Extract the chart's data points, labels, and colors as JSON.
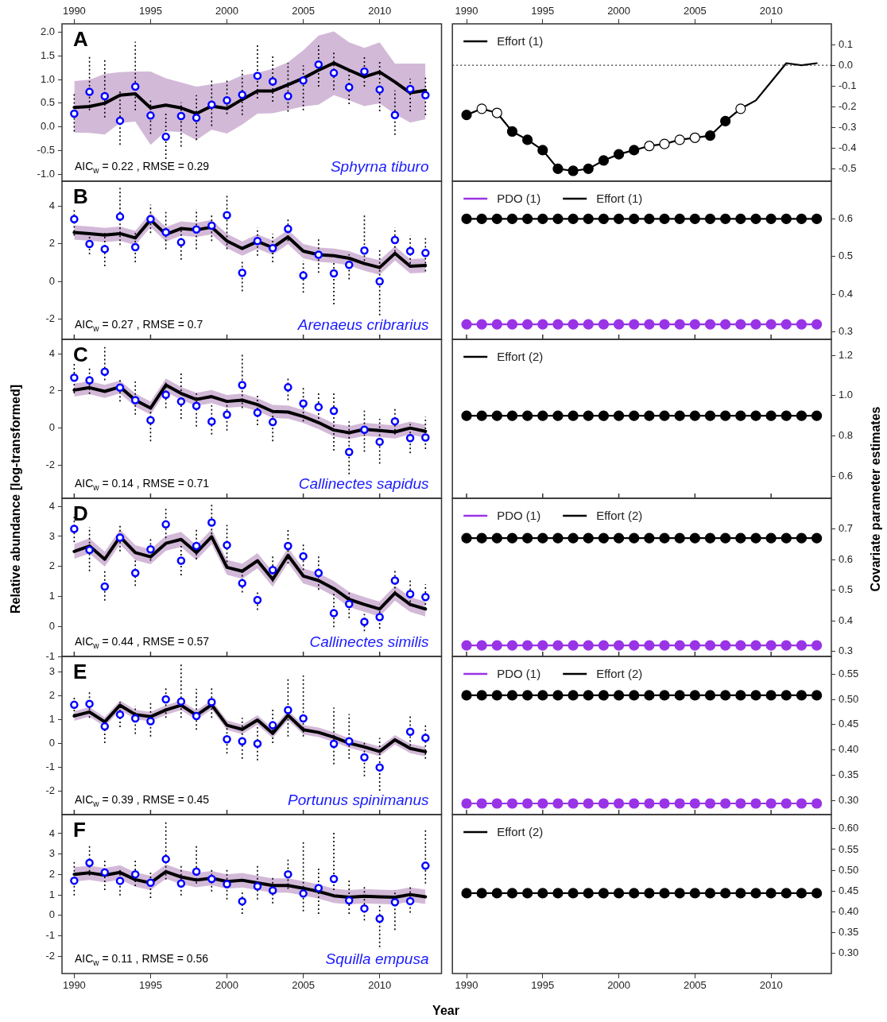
{
  "chart_data": [
    {
      "type": "line",
      "title": "A",
      "subtitle": "Sphyrna tiburo",
      "annotations": [
        "AIC$_{w}$ = 0.22 , RMSE = 0.29"
      ],
      "x": [
        1990,
        1991,
        1992,
        1993,
        1994,
        1995,
        1996,
        1997,
        1998,
        1999,
        2000,
        2001,
        2002,
        2003,
        2004,
        2005,
        2006,
        2007,
        2008,
        2009,
        2010,
        2011,
        2012,
        2013
      ],
      "xlim": [
        1989.2,
        2014.05
      ],
      "xticks": [
        1990,
        1995,
        2000,
        2005,
        2010
      ],
      "ylim": [
        -1.15,
        2.18
      ],
      "yticks": [
        {
          "value": -1,
          "label": "-1.0"
        },
        -0.5,
        {
          "value": 0,
          "label": "0.0"
        },
        0.5,
        {
          "value": 1,
          "label": "1.0"
        },
        1.5,
        {
          "value": 2,
          "label": "2.0"
        }
      ],
      "series": [
        {
          "type": "line",
          "color": "#000000",
          "marker": "none",
          "values": [
            0.41,
            0.43,
            0.5,
            0.67,
            0.7,
            0.4,
            0.46,
            0.4,
            0.28,
            0.44,
            0.39,
            0.58,
            0.76,
            0.76,
            0.89,
            1.03,
            1.2,
            1.35,
            1.2,
            1.06,
            1.16,
            0.95,
            0.72,
            0.77
          ],
          "upper": [
            0.97,
            1.0,
            1.12,
            1.16,
            1.17,
            1.17,
            1.03,
            0.94,
            0.85,
            0.9,
            0.95,
            1.09,
            1.14,
            1.23,
            1.37,
            1.62,
            1.93,
            2.02,
            1.79,
            1.67,
            1.79,
            1.34,
            1.34,
            1.34
          ],
          "lower": [
            -0.12,
            -0.13,
            -0.16,
            0.08,
            0.11,
            -0.38,
            -0.09,
            -0.11,
            -0.28,
            -0.06,
            -0.14,
            0.05,
            0.28,
            0.29,
            0.36,
            0.43,
            0.47,
            0.67,
            0.56,
            0.44,
            0.5,
            0.27,
            0.09,
            0.16
          ]
        },
        {
          "type": "scatter",
          "color": "#0000ff",
          "marker": "circle",
          "values": [
            0.28,
            0.74,
            0.65,
            0.13,
            0.85,
            0.24,
            -0.21,
            0.23,
            0.19,
            0.47,
            0.56,
            0.68,
            1.08,
            0.96,
            0.65,
            0.98,
            1.32,
            1.14,
            0.84,
            1.17,
            0.79,
            0.25,
            0.8,
            0.67
          ],
          "errors": [
            [
              -0.1,
              0.7
            ],
            [
              0.35,
              1.5
            ],
            [
              0.2,
              1.45
            ],
            [
              -0.38,
              0.75
            ],
            [
              0.35,
              1.8
            ],
            [
              -0.15,
              0.6
            ],
            [
              -0.68,
              0.28
            ],
            [
              -0.42,
              0.52
            ],
            [
              -0.28,
              0.67
            ],
            [
              0.02,
              0.98
            ],
            [
              0.27,
              1.02
            ],
            [
              0.25,
              1.2
            ],
            [
              0.6,
              1.77
            ],
            [
              0.53,
              1.5
            ],
            [
              0.32,
              1.35
            ],
            [
              0.35,
              1.3
            ],
            [
              0.85,
              1.72
            ],
            [
              0.78,
              1.57
            ],
            [
              0.48,
              1.2
            ],
            [
              0.85,
              1.52
            ],
            [
              0.33,
              1.42
            ],
            [
              -0.17,
              0.77
            ],
            [
              0.33,
              1.02
            ],
            [
              0.25,
              1.05
            ]
          ]
        }
      ]
    },
    {
      "type": "line",
      "legend": "top left",
      "x": [
        1990,
        1991,
        1992,
        1993,
        1994,
        1995,
        1996,
        1997,
        1998,
        1999,
        2000,
        2001,
        2002,
        2003,
        2004,
        2005,
        2006,
        2007,
        2008,
        2009,
        2010,
        2011,
        2012,
        2013
      ],
      "xlim": [
        1989.07,
        2013.96
      ],
      "xticks": [
        1990,
        1995,
        2000,
        2005,
        2010
      ],
      "ylim": [
        -0.56,
        0.2
      ],
      "yticks": [
        -0.5,
        -0.4,
        -0.3,
        -0.2,
        -0.1,
        {
          "value": 0,
          "label": "0.0"
        },
        0.1
      ],
      "ref_lines": [
        {
          "axis": "y",
          "value": 0,
          "line_style": "dotted"
        }
      ],
      "series": [
        {
          "name": "Effort (1)",
          "type": "line",
          "color": "#000000",
          "marker": "circle",
          "values": [
            -0.24,
            -0.21,
            -0.23,
            -0.32,
            -0.36,
            -0.41,
            -0.5,
            -0.51,
            -0.5,
            -0.46,
            -0.43,
            -0.41,
            -0.39,
            -0.38,
            -0.36,
            -0.35,
            -0.34,
            -0.27,
            -0.21,
            -0.17,
            -0.08,
            0.01,
            0.0,
            0.01
          ],
          "colors": [
            "#000000",
            "#ffffff",
            "#ffffff",
            "#000000",
            "#000000",
            "#000000",
            "#000000",
            "#000000",
            "#000000",
            "#000000",
            "#000000",
            "#000000",
            "#ffffff",
            "#ffffff",
            "#ffffff",
            "#ffffff",
            "#000000",
            "#000000",
            "#ffffff",
            null,
            null,
            null,
            null,
            null
          ]
        }
      ]
    },
    {
      "type": "line",
      "title": "B",
      "subtitle": "Arenaeus cribrarius",
      "annotations": [
        "AIC$_{w}$ = 0.27 , RMSE = 0.7"
      ],
      "x": [
        1990,
        1991,
        1992,
        1993,
        1994,
        1995,
        1996,
        1997,
        1998,
        1999,
        2000,
        2001,
        2002,
        2003,
        2004,
        2005,
        2006,
        2007,
        2008,
        2009,
        2010,
        2011,
        2012,
        2013
      ],
      "xlim": [
        1989.2,
        2014.05
      ],
      "xticks": [
        1990,
        1995,
        2000,
        2005,
        2010
      ],
      "tick_labels": "y",
      "ylim": [
        -3.07,
        5.32
      ],
      "yticks": [
        -2,
        0,
        2,
        4
      ],
      "series": [
        {
          "type": "line",
          "color": "#000000",
          "marker": "none",
          "values": [
            2.6,
            2.54,
            2.46,
            2.54,
            2.31,
            3.27,
            2.5,
            2.81,
            2.74,
            2.88,
            2.15,
            1.75,
            2.12,
            1.8,
            2.36,
            1.61,
            1.42,
            1.37,
            1.23,
            0.95,
            0.74,
            1.49,
            0.81,
            0.85
          ],
          "upper": [
            2.98,
            2.92,
            2.84,
            2.92,
            2.69,
            3.65,
            2.88,
            3.19,
            3.12,
            3.26,
            2.53,
            2.13,
            2.5,
            2.18,
            2.74,
            1.99,
            1.8,
            1.75,
            1.61,
            1.33,
            1.12,
            1.87,
            1.19,
            1.23
          ],
          "lower": [
            2.22,
            2.16,
            2.08,
            2.16,
            1.93,
            2.89,
            2.12,
            2.43,
            2.36,
            2.5,
            1.77,
            1.37,
            1.74,
            1.42,
            1.98,
            1.23,
            1.04,
            0.99,
            0.85,
            0.57,
            0.36,
            1.11,
            0.43,
            0.47
          ]
        },
        {
          "type": "scatter",
          "color": "#0000ff",
          "marker": "circle",
          "values": [
            3.31,
            1.99,
            1.72,
            3.44,
            1.82,
            3.31,
            2.61,
            2.08,
            2.76,
            2.96,
            3.52,
            0.46,
            2.15,
            1.77,
            2.79,
            0.32,
            1.42,
            0.43,
            0.88,
            1.64,
            0.01,
            2.2,
            1.61,
            1.51
          ],
          "errors": [
            [
              2.43,
              3.9
            ],
            [
              1.44,
              2.6
            ],
            [
              0.81,
              2.57
            ],
            [
              1.94,
              4.96
            ],
            [
              1.02,
              2.57
            ],
            [
              2.57,
              4.08
            ],
            [
              1.72,
              3.69
            ],
            [
              1.16,
              2.85
            ],
            [
              1.72,
              3.83
            ],
            [
              2.15,
              3.62
            ],
            [
              1.72,
              4.6
            ],
            [
              -0.52,
              1.16
            ],
            [
              1.37,
              2.85
            ],
            [
              1.02,
              2.53
            ],
            [
              2.15,
              3.34
            ],
            [
              -0.59,
              1.1
            ],
            [
              0.46,
              2.36
            ],
            [
              -1.22,
              1.1
            ],
            [
              0.11,
              1.44
            ],
            [
              0.88,
              3.62
            ],
            [
              -1.79,
              1.72
            ],
            [
              1.58,
              2.85
            ],
            [
              0.74,
              2.43
            ],
            [
              0.53,
              2.29
            ]
          ]
        }
      ]
    },
    {
      "type": "line",
      "legend": "top left",
      "x": [
        1990,
        1991,
        1992,
        1993,
        1994,
        1995,
        1996,
        1997,
        1998,
        1999,
        2000,
        2001,
        2002,
        2003,
        2004,
        2005,
        2006,
        2007,
        2008,
        2009,
        2010,
        2011,
        2012,
        2013
      ],
      "xlim": [
        1989.07,
        2013.96
      ],
      "xticks": [
        1990,
        1995,
        2000,
        2005,
        2010
      ],
      "tick_labels": "y",
      "ylim": [
        0.28,
        0.7
      ],
      "yticks": [
        0.3,
        0.4,
        0.5,
        0.6
      ],
      "series": [
        {
          "name": "PDO (1)",
          "type": "line",
          "color": "#9933e6",
          "marker": "circle",
          "values": [
            0.32,
            0.32,
            0.32,
            0.32,
            0.32,
            0.32,
            0.32,
            0.32,
            0.32,
            0.32,
            0.32,
            0.32,
            0.32,
            0.32,
            0.32,
            0.32,
            0.32,
            0.32,
            0.32,
            0.32,
            0.32,
            0.32,
            0.32,
            0.32
          ]
        },
        {
          "name": "Effort (1)",
          "type": "line",
          "color": "#000000",
          "marker": "circle",
          "values": [
            0.6,
            0.6,
            0.6,
            0.6,
            0.6,
            0.6,
            0.6,
            0.6,
            0.6,
            0.6,
            0.6,
            0.6,
            0.6,
            0.6,
            0.6,
            0.6,
            0.6,
            0.6,
            0.6,
            0.6,
            0.6,
            0.6,
            0.6,
            0.6
          ]
        }
      ]
    },
    {
      "type": "line",
      "title": "C",
      "subtitle": "Callinectes sapidus",
      "annotations": [
        "AIC$_{w}$ = 0.14 , RMSE = 0.71"
      ],
      "x": [
        1990,
        1991,
        1992,
        1993,
        1994,
        1995,
        1996,
        1997,
        1998,
        1999,
        2000,
        2001,
        2002,
        2003,
        2004,
        2005,
        2006,
        2007,
        2008,
        2009,
        2010,
        2011,
        2012,
        2013
      ],
      "xlim": [
        1989.2,
        2014.05
      ],
      "xticks": [
        1990,
        1995,
        2000,
        2005,
        2010
      ],
      "tick_labels": "y",
      "ylim": [
        -3.78,
        4.77
      ],
      "yticks": [
        -2,
        0,
        2,
        4
      ],
      "series": [
        {
          "type": "line",
          "color": "#000000",
          "marker": "none",
          "values": [
            2.04,
            2.17,
            1.97,
            2.21,
            1.5,
            1.07,
            2.31,
            1.86,
            1.54,
            1.69,
            1.43,
            1.5,
            1.26,
            0.89,
            0.86,
            0.62,
            0.29,
            -0.11,
            -0.25,
            -0.07,
            -0.14,
            -0.21,
            0.0,
            -0.18
          ],
          "upper": [
            2.39,
            2.52,
            2.32,
            2.56,
            1.85,
            1.42,
            2.66,
            2.21,
            1.89,
            2.04,
            1.78,
            1.85,
            1.61,
            1.24,
            1.21,
            0.97,
            0.64,
            0.24,
            0.1,
            0.28,
            0.21,
            0.14,
            0.35,
            0.17
          ],
          "lower": [
            1.69,
            1.82,
            1.62,
            1.86,
            1.15,
            0.72,
            1.96,
            1.51,
            1.19,
            1.34,
            1.08,
            1.15,
            0.91,
            0.54,
            0.51,
            0.27,
            -0.06,
            -0.46,
            -0.6,
            -0.42,
            -0.49,
            -0.56,
            -0.35,
            -0.53
          ]
        },
        {
          "type": "scatter",
          "color": "#0000ff",
          "marker": "circle",
          "values": [
            2.71,
            2.57,
            3.03,
            2.17,
            1.5,
            0.42,
            1.79,
            1.43,
            1.19,
            0.35,
            0.72,
            2.31,
            0.83,
            0.32,
            2.19,
            1.32,
            1.13,
            0.92,
            -1.29,
            -0.09,
            -0.74,
            0.36,
            -0.54,
            -0.51
          ],
          "errors": [
            [
              1.86,
              3.57
            ],
            [
              1.83,
              3.31
            ],
            [
              2.57,
              4.35
            ],
            [
              1.43,
              2.71
            ],
            [
              0.72,
              2.5
            ],
            [
              -0.71,
              1.22
            ],
            [
              1.07,
              2.57
            ],
            [
              0.5,
              2.93
            ],
            [
              0.08,
              1.86
            ],
            [
              -0.35,
              1.22
            ],
            [
              -0.14,
              1.57
            ],
            [
              1.07,
              3.99
            ],
            [
              0.15,
              1.86
            ],
            [
              -0.71,
              0.79
            ],
            [
              1.5,
              2.78
            ],
            [
              0.36,
              2.28
            ],
            [
              0.5,
              1.93
            ],
            [
              -1.21,
              1.93
            ],
            [
              -2.49,
              0.36
            ],
            [
              -1.28,
              0.93
            ],
            [
              -1.92,
              0.5
            ],
            [
              -0.35,
              1.03
            ],
            [
              -1.35,
              0.22
            ],
            [
              -1.13,
              0.6
            ]
          ]
        }
      ]
    },
    {
      "type": "line",
      "legend": "top left",
      "x": [
        1990,
        1991,
        1992,
        1993,
        1994,
        1995,
        1996,
        1997,
        1998,
        1999,
        2000,
        2001,
        2002,
        2003,
        2004,
        2005,
        2006,
        2007,
        2008,
        2009,
        2010,
        2011,
        2012,
        2013
      ],
      "xlim": [
        1989.07,
        2013.96
      ],
      "xticks": [
        1990,
        1995,
        2000,
        2005,
        2010
      ],
      "tick_labels": "y",
      "ylim": [
        0.49,
        1.28
      ],
      "yticks": [
        0.6,
        0.8,
        {
          "value": 1,
          "label": "1.0"
        },
        1.2
      ],
      "series": [
        {
          "name": "Effort (2)",
          "type": "line",
          "color": "#000000",
          "marker": "circle",
          "values": [
            0.9,
            0.9,
            0.9,
            0.9,
            0.9,
            0.9,
            0.9,
            0.9,
            0.9,
            0.9,
            0.9,
            0.9,
            0.9,
            0.9,
            0.9,
            0.9,
            0.9,
            0.9,
            0.9,
            0.9,
            0.9,
            0.9,
            0.9,
            0.9
          ]
        }
      ]
    },
    {
      "type": "line",
      "title": "D",
      "subtitle": "Callinectes similis",
      "annotations": [
        "AIC$_{w}$ = 0.44 , RMSE = 0.57"
      ],
      "ylabel": "Relative abundance [log-transformed]",
      "x": [
        1990,
        1991,
        1992,
        1993,
        1994,
        1995,
        1996,
        1997,
        1998,
        1999,
        2000,
        2001,
        2002,
        2003,
        2004,
        2005,
        2006,
        2007,
        2008,
        2009,
        2010,
        2011,
        2012,
        2013
      ],
      "xlim": [
        1989.2,
        2014.05
      ],
      "xticks": [
        1990,
        1995,
        2000,
        2005,
        2010
      ],
      "tick_labels": "y",
      "ylim": [
        -1,
        4.27
      ],
      "yticks": [
        -1,
        0,
        1,
        2,
        3,
        4
      ],
      "series": [
        {
          "type": "line",
          "color": "#000000",
          "marker": "none",
          "values": [
            2.5,
            2.68,
            2.24,
            2.99,
            2.46,
            2.32,
            2.77,
            2.9,
            2.46,
            2.99,
            1.97,
            1.84,
            2.19,
            1.57,
            2.37,
            1.68,
            1.53,
            1.26,
            0.9,
            0.73,
            0.58,
            1.11,
            0.73,
            0.58
          ],
          "upper": [
            2.75,
            2.93,
            2.49,
            3.24,
            2.71,
            2.57,
            3.02,
            3.15,
            2.71,
            3.24,
            2.22,
            2.09,
            2.44,
            1.82,
            2.62,
            1.93,
            1.78,
            1.51,
            1.15,
            0.98,
            0.83,
            1.36,
            0.98,
            0.83
          ],
          "lower": [
            2.25,
            2.43,
            1.99,
            2.74,
            2.21,
            2.07,
            2.52,
            2.65,
            2.21,
            2.74,
            1.72,
            1.59,
            1.94,
            1.32,
            2.12,
            1.43,
            1.28,
            1.01,
            0.65,
            0.48,
            0.33,
            0.86,
            0.48,
            0.33
          ]
        },
        {
          "type": "scatter",
          "color": "#0000ff",
          "marker": "circle",
          "values": [
            3.25,
            2.55,
            1.33,
            2.96,
            1.78,
            2.57,
            3.4,
            2.19,
            2.68,
            3.46,
            2.71,
            1.44,
            0.88,
            1.88,
            2.68,
            2.34,
            1.78,
            0.44,
            0.75,
            0.15,
            0.31,
            1.53,
            1.08,
            0.98
          ],
          "errors": [
            [
              2.81,
              3.74
            ],
            [
              1.84,
              3.31
            ],
            [
              0.86,
              1.92
            ],
            [
              2.5,
              3.38
            ],
            [
              1.35,
              2.28
            ],
            [
              2.19,
              2.94
            ],
            [
              2.94,
              4.0
            ],
            [
              1.7,
              2.72
            ],
            [
              2.24,
              3.3
            ],
            [
              2.94,
              4.07
            ],
            [
              2.01,
              3.38
            ],
            [
              1.13,
              1.88
            ],
            [
              0.55,
              1.17
            ],
            [
              1.48,
              2.37
            ],
            [
              2.1,
              3.25
            ],
            [
              1.88,
              2.81
            ],
            [
              1.22,
              2.37
            ],
            [
              -0.03,
              1.13
            ],
            [
              0.28,
              1.17
            ],
            [
              -0.16,
              0.42
            ],
            [
              -0.07,
              0.73
            ],
            [
              1.13,
              1.92
            ],
            [
              0.68,
              1.53
            ],
            [
              0.59,
              1.4
            ]
          ]
        }
      ]
    },
    {
      "type": "line",
      "legend": "top left",
      "x": [
        1990,
        1991,
        1992,
        1993,
        1994,
        1995,
        1996,
        1997,
        1998,
        1999,
        2000,
        2001,
        2002,
        2003,
        2004,
        2005,
        2006,
        2007,
        2008,
        2009,
        2010,
        2011,
        2012,
        2013
      ],
      "xlim": [
        1989.07,
        2013.96
      ],
      "xticks": [
        1990,
        1995,
        2000,
        2005,
        2010
      ],
      "tick_labels": "y",
      "ylabel": "Covariate parameter estimates",
      "ylim": [
        0.284,
        0.8
      ],
      "yticks": [
        0.3,
        0.4,
        0.5,
        0.6,
        0.7
      ],
      "series": [
        {
          "name": "PDO (1)",
          "type": "line",
          "color": "#9933e6",
          "marker": "circle",
          "values": [
            0.32,
            0.32,
            0.32,
            0.32,
            0.32,
            0.32,
            0.32,
            0.32,
            0.32,
            0.32,
            0.32,
            0.32,
            0.32,
            0.32,
            0.32,
            0.32,
            0.32,
            0.32,
            0.32,
            0.32,
            0.32,
            0.32,
            0.32,
            0.32
          ]
        },
        {
          "name": "Effort (2)",
          "type": "line",
          "color": "#000000",
          "marker": "circle",
          "values": [
            0.67,
            0.67,
            0.67,
            0.67,
            0.67,
            0.67,
            0.67,
            0.67,
            0.67,
            0.67,
            0.67,
            0.67,
            0.67,
            0.67,
            0.67,
            0.67,
            0.67,
            0.67,
            0.67,
            0.67,
            0.67,
            0.67,
            0.67,
            0.67
          ]
        }
      ]
    },
    {
      "type": "line",
      "title": "E",
      "subtitle": "Portunus spinimanus",
      "annotations": [
        "AIC$_{w}$ = 0.39 , RMSE = 0.45"
      ],
      "x": [
        1990,
        1991,
        1992,
        1993,
        1994,
        1995,
        1996,
        1997,
        1998,
        1999,
        2000,
        2001,
        2002,
        2003,
        2004,
        2005,
        2006,
        2007,
        2008,
        2009,
        2010,
        2011,
        2012,
        2013
      ],
      "xlim": [
        1989.2,
        2014.05
      ],
      "xticks": [
        1990,
        1995,
        2000,
        2005,
        2010
      ],
      "tick_labels": "y",
      "ylim": [
        -2.98,
        3.66
      ],
      "yticks": [
        -2,
        -1,
        0,
        1,
        2,
        3
      ],
      "series": [
        {
          "type": "line",
          "color": "#000000",
          "marker": "none",
          "values": [
            1.16,
            1.33,
            0.91,
            1.61,
            1.22,
            1.13,
            1.41,
            1.61,
            1.19,
            1.63,
            0.77,
            0.6,
            0.99,
            0.43,
            1.19,
            0.58,
            0.47,
            0.27,
            0.02,
            -0.14,
            -0.33,
            0.16,
            -0.2,
            -0.34
          ],
          "upper": [
            1.36,
            1.53,
            1.11,
            1.81,
            1.42,
            1.33,
            1.61,
            1.81,
            1.39,
            1.83,
            0.97,
            0.8,
            1.19,
            0.63,
            1.39,
            0.78,
            0.67,
            0.47,
            0.22,
            0.06,
            -0.13,
            0.36,
            0.0,
            -0.14
          ],
          "lower": [
            0.96,
            1.13,
            0.71,
            1.41,
            1.02,
            0.93,
            1.21,
            1.41,
            0.99,
            1.43,
            0.57,
            0.4,
            0.79,
            0.23,
            0.99,
            0.38,
            0.27,
            0.07,
            -0.18,
            -0.34,
            -0.53,
            -0.04,
            -0.4,
            -0.54
          ]
        },
        {
          "type": "scatter",
          "color": "#0000ff",
          "marker": "circle",
          "values": [
            1.63,
            1.67,
            0.72,
            1.22,
            1.06,
            0.94,
            1.86,
            1.77,
            1.16,
            1.74,
            0.18,
            0.1,
            0.0,
            0.77,
            1.41,
            1.06,
            null,
            -0.01,
            0.1,
            -0.58,
            -1.0,
            null,
            0.5,
            0.24
          ],
          "errors": [
            [
              1.19,
              2.02
            ],
            [
              1.08,
              2.22
            ],
            [
              0.02,
              0.72
            ],
            [
              0.69,
              1.74
            ],
            [
              0.41,
              1.58
            ],
            [
              0.3,
              1.74
            ],
            [
              1.08,
              2.41
            ],
            [
              1.08,
              3.36
            ],
            [
              0.58,
              2.3
            ],
            [
              1.08,
              2.41
            ],
            [
              -0.42,
              0.74
            ],
            [
              -0.64,
              1.08
            ],
            [
              -0.7,
              0.69
            ],
            [
              0.02,
              1.52
            ],
            [
              0.3,
              2.74
            ],
            [
              0.3,
              2.86
            ],
            null,
            [
              -0.87,
              1.52
            ],
            [
              -0.64,
              1.24
            ],
            [
              -1.37,
              0.13
            ],
            [
              -1.98,
              0.24
            ],
            null,
            [
              -0.26,
              1.22
            ],
            [
              -0.64,
              0.82
            ]
          ]
        }
      ]
    },
    {
      "type": "line",
      "legend": "top left",
      "x": [
        1990,
        1991,
        1992,
        1993,
        1994,
        1995,
        1996,
        1997,
        1998,
        1999,
        2000,
        2001,
        2002,
        2003,
        2004,
        2005,
        2006,
        2007,
        2008,
        2009,
        2010,
        2011,
        2012,
        2013
      ],
      "xlim": [
        1989.07,
        2013.96
      ],
      "xticks": [
        1990,
        1995,
        2000,
        2005,
        2010
      ],
      "tick_labels": "y",
      "ylim": [
        0.272,
        0.585
      ],
      "yticks": [
        {
          "value": 0.3,
          "label": "0.30"
        },
        0.35,
        {
          "value": 0.4,
          "label": "0.40"
        },
        0.45,
        {
          "value": 0.5,
          "label": "0.50"
        },
        0.55
      ],
      "series": [
        {
          "name": "PDO (1)",
          "type": "line",
          "color": "#9933e6",
          "marker": "circle",
          "values": [
            0.294,
            0.294,
            0.294,
            0.294,
            0.294,
            0.294,
            0.294,
            0.294,
            0.294,
            0.294,
            0.294,
            0.294,
            0.294,
            0.294,
            0.294,
            0.294,
            0.294,
            0.294,
            0.294,
            0.294,
            0.294,
            0.294,
            0.294,
            0.294
          ]
        },
        {
          "name": "Effort (2)",
          "type": "line",
          "color": "#000000",
          "marker": "circle",
          "values": [
            0.508,
            0.508,
            0.508,
            0.508,
            0.508,
            0.508,
            0.508,
            0.508,
            0.508,
            0.508,
            0.508,
            0.508,
            0.508,
            0.508,
            0.508,
            0.508,
            0.508,
            0.508,
            0.508,
            0.508,
            0.508,
            0.508,
            0.508,
            0.508
          ]
        }
      ]
    },
    {
      "type": "line",
      "title": "F",
      "subtitle": "Squilla empusa",
      "annotations": [
        "AIC$_{w}$ = 0.11 , RMSE = 0.56"
      ],
      "xlabel": "Year",
      "x": [
        1990,
        1991,
        1992,
        1993,
        1994,
        1995,
        1996,
        1997,
        1998,
        1999,
        2000,
        2001,
        2002,
        2003,
        2004,
        2005,
        2006,
        2007,
        2008,
        2009,
        2010,
        2011,
        2012,
        2013
      ],
      "xlim": [
        1989.2,
        2014.05
      ],
      "xticks": [
        1990,
        1995,
        2000,
        2005,
        2010
      ],
      "ylim": [
        -2.84,
        4.93
      ],
      "yticks": [
        -2,
        -1,
        0,
        1,
        2,
        3,
        4
      ],
      "series": [
        {
          "type": "line",
          "color": "#000000",
          "marker": "none",
          "values": [
            2.01,
            2.08,
            1.97,
            2.1,
            1.75,
            1.59,
            2.14,
            1.88,
            1.73,
            1.82,
            1.66,
            1.72,
            1.59,
            1.46,
            1.46,
            1.33,
            1.17,
            0.96,
            0.89,
            0.94,
            0.91,
            0.89,
            1.02,
            0.91
          ],
          "upper": [
            2.36,
            2.43,
            2.32,
            2.45,
            2.1,
            1.94,
            2.49,
            2.23,
            2.08,
            2.17,
            2.01,
            2.07,
            1.94,
            1.81,
            1.81,
            1.68,
            1.52,
            1.31,
            1.24,
            1.29,
            1.26,
            1.24,
            1.37,
            1.26
          ],
          "lower": [
            1.66,
            1.73,
            1.62,
            1.75,
            1.4,
            1.24,
            1.79,
            1.53,
            1.38,
            1.47,
            1.31,
            1.37,
            1.24,
            1.11,
            1.11,
            0.98,
            0.82,
            0.61,
            0.54,
            0.59,
            0.56,
            0.54,
            0.67,
            0.56
          ]
        },
        {
          "type": "scatter",
          "color": "#0000ff",
          "marker": "circle",
          "values": [
            1.7,
            2.57,
            2.1,
            1.69,
            2.01,
            1.6,
            2.75,
            1.56,
            2.14,
            1.78,
            1.53,
            0.69,
            1.42,
            1.22,
            2.01,
            1.07,
            1.34,
            1.78,
            0.73,
            0.34,
            -0.16,
            0.65,
            0.7,
            2.43
          ],
          "errors": [
            [
              0.98,
              2.73
            ],
            [
              1.95,
              3.4
            ],
            [
              1.24,
              2.79
            ],
            [
              0.98,
              2.34
            ],
            [
              1.43,
              2.73
            ],
            [
              0.85,
              2.21
            ],
            [
              1.75,
              4.56
            ],
            [
              0.98,
              2.47
            ],
            [
              1.56,
              3.4
            ],
            [
              1.17,
              2.27
            ],
            [
              0.78,
              2.34
            ],
            [
              0.07,
              1.24
            ],
            [
              0.78,
              2.53
            ],
            [
              0.59,
              1.95
            ],
            [
              1.3,
              2.73
            ],
            [
              0.2,
              3.7
            ],
            [
              0.07,
              2.4
            ],
            [
              1.24,
              4.05
            ],
            [
              0.07,
              1.75
            ],
            [
              -0.25,
              1.46
            ],
            [
              -1.55,
              0.59
            ],
            [
              -0.71,
              1.24
            ],
            [
              0.13,
              1.46
            ],
            [
              1.56,
              4.25
            ]
          ]
        }
      ]
    },
    {
      "type": "line",
      "legend": "top left",
      "x": [
        1990,
        1991,
        1992,
        1993,
        1994,
        1995,
        1996,
        1997,
        1998,
        1999,
        2000,
        2001,
        2002,
        2003,
        2004,
        2005,
        2006,
        2007,
        2008,
        2009,
        2010,
        2011,
        2012,
        2013
      ],
      "xlim": [
        1989.07,
        2013.96
      ],
      "xticks": [
        1990,
        1995,
        2000,
        2005,
        2010
      ],
      "ylim": [
        0.252,
        0.634
      ],
      "yticks": [
        {
          "value": 0.3,
          "label": "0.30"
        },
        0.35,
        {
          "value": 0.4,
          "label": "0.40"
        },
        0.45,
        {
          "value": 0.5,
          "label": "0.50"
        },
        0.55,
        {
          "value": 0.6,
          "label": "0.60"
        }
      ],
      "series": [
        {
          "name": "Effort (2)",
          "type": "line",
          "color": "#000000",
          "marker": "circle",
          "values": [
            0.445,
            0.445,
            0.445,
            0.445,
            0.445,
            0.445,
            0.445,
            0.445,
            0.445,
            0.445,
            0.445,
            0.445,
            0.445,
            0.445,
            0.445,
            0.445,
            0.445,
            0.445,
            0.445,
            0.445,
            0.445,
            0.445,
            0.445,
            0.445
          ]
        }
      ]
    }
  ]
}
